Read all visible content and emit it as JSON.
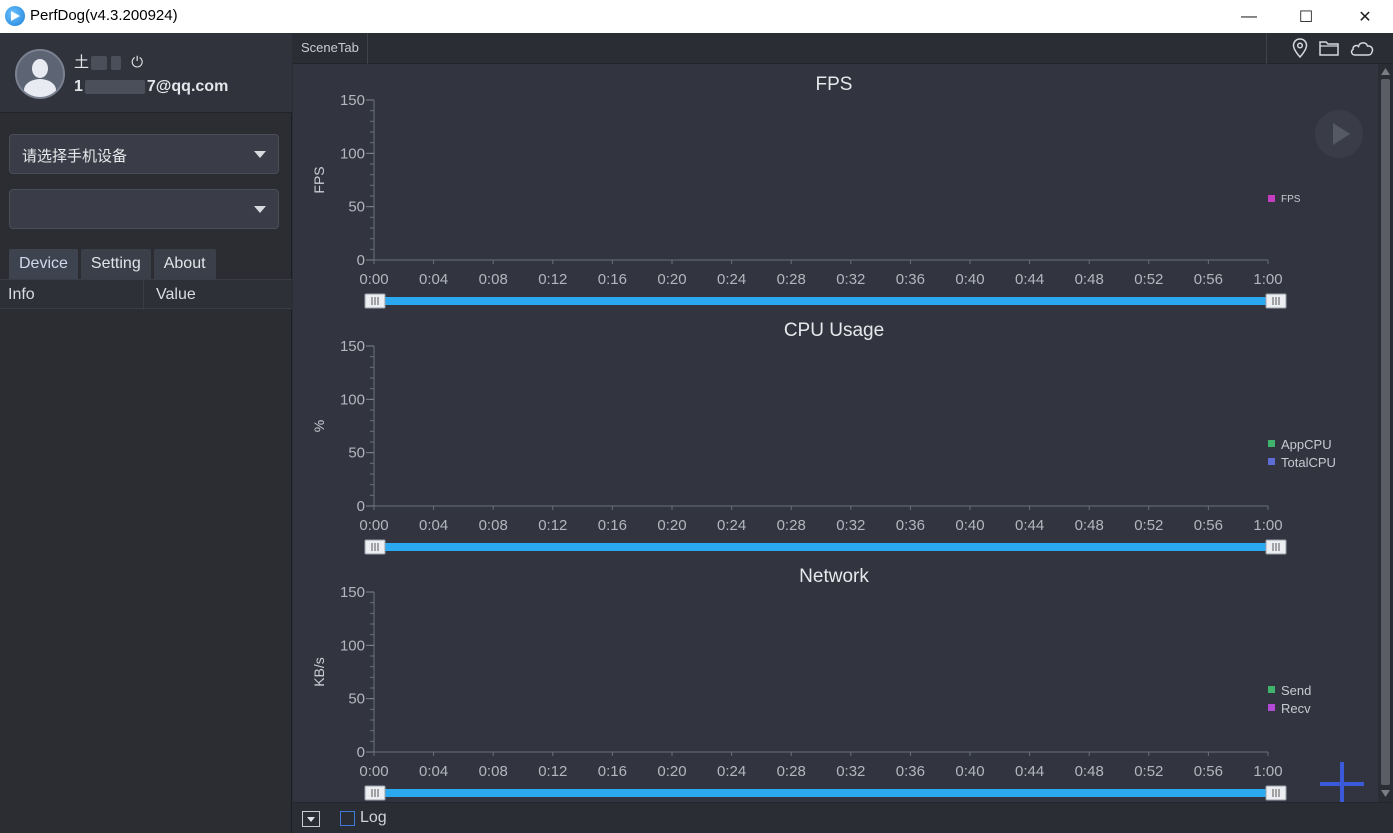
{
  "window": {
    "title": "PerfDog(v4.3.200924)",
    "minimize": "—",
    "maximize": "☐",
    "close": "✕"
  },
  "profile": {
    "name_visible": "土",
    "email_prefix": "1",
    "email_suffix": "7@qq.com",
    "power_icon": "⏻"
  },
  "device_select": {
    "placeholder": "请选择手机设备"
  },
  "app_select": {
    "value": ""
  },
  "tabs": [
    {
      "label": "Device"
    },
    {
      "label": "Setting"
    },
    {
      "label": "About"
    }
  ],
  "table": {
    "columns": [
      "Info",
      "Value"
    ]
  },
  "scene_tab": {
    "label": "SceneTab"
  },
  "bottom": {
    "log_label": "Log"
  },
  "colors": {
    "range_bar": "#2aa9f0",
    "fps": "#c63ec0",
    "app_cpu": "#3fb36b",
    "total_cpu": "#5e6cd6",
    "send": "#3fb36b",
    "recv": "#b34ad6"
  },
  "chart_data": [
    {
      "type": "line",
      "title": "FPS",
      "ylabel": "FPS",
      "ylim": [
        0,
        150
      ],
      "yticks": [
        "150",
        "100",
        "50",
        "0"
      ],
      "xticks": [
        "0:00",
        "0:04",
        "0:08",
        "0:12",
        "0:16",
        "0:20",
        "0:24",
        "0:28",
        "0:32",
        "0:36",
        "0:40",
        "0:44",
        "0:48",
        "0:52",
        "0:56",
        "1:00"
      ],
      "series": [
        {
          "name": "FPS",
          "color": "#c63ec0",
          "values": []
        }
      ],
      "legend_placement": "right"
    },
    {
      "type": "line",
      "title": "CPU Usage",
      "ylabel": "%",
      "ylim": [
        0,
        150
      ],
      "yticks": [
        "150",
        "100",
        "50",
        "0"
      ],
      "xticks": [
        "0:00",
        "0:04",
        "0:08",
        "0:12",
        "0:16",
        "0:20",
        "0:24",
        "0:28",
        "0:32",
        "0:36",
        "0:40",
        "0:44",
        "0:48",
        "0:52",
        "0:56",
        "1:00"
      ],
      "series": [
        {
          "name": "AppCPU",
          "color": "#3fb36b",
          "values": []
        },
        {
          "name": "TotalCPU",
          "color": "#5e6cd6",
          "values": []
        }
      ],
      "legend_placement": "right"
    },
    {
      "type": "line",
      "title": "Network",
      "ylabel": "KB/s",
      "ylim": [
        0,
        150
      ],
      "yticks": [
        "150",
        "100",
        "50",
        "0"
      ],
      "xticks": [
        "0:00",
        "0:04",
        "0:08",
        "0:12",
        "0:16",
        "0:20",
        "0:24",
        "0:28",
        "0:32",
        "0:36",
        "0:40",
        "0:44",
        "0:48",
        "0:52",
        "0:56",
        "1:00"
      ],
      "series": [
        {
          "name": "Send",
          "color": "#3fb36b",
          "values": []
        },
        {
          "name": "Recv",
          "color": "#b34ad6",
          "values": []
        }
      ],
      "legend_placement": "right"
    }
  ]
}
